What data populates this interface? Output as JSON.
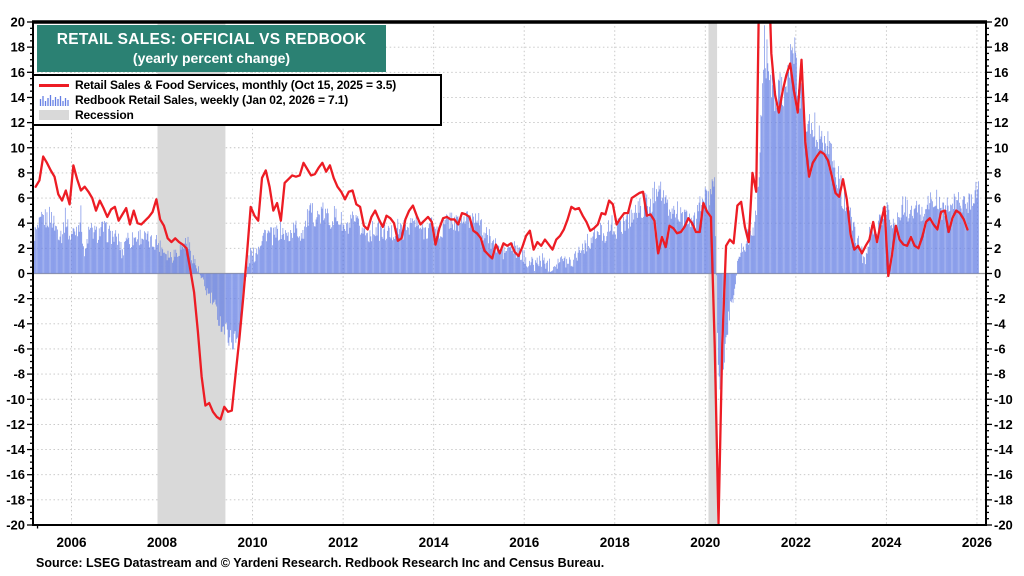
{
  "title": {
    "line1": "RETAIL SALES: OFFICIAL VS REDBOOK",
    "line2": "(yearly percent change)"
  },
  "legend": [
    {
      "type": "line",
      "color": "#ED1C24",
      "label": "Retail Sales & Food Services, monthly (Oct 15, 2025 = 3.5)"
    },
    {
      "type": "bars",
      "color": "#657FE4",
      "label": "Redbook Retail Sales, weekly (Jan 02, 2026 = 7.1)"
    },
    {
      "type": "area",
      "color": "#D9D9D9",
      "label": "Recession"
    }
  ],
  "source": "Source: LSEG Datastream and © Yardeni Research. Redbook Research Inc and Census Bureau.",
  "colors": {
    "header_bg": "#2B8173",
    "header_text": "#FFFFFF",
    "line": "#ED1C24",
    "bars": "#657FE4",
    "recession": "#D9D9D9",
    "axis": "#000000",
    "zero_line": "#9B9B9B"
  },
  "chart_data": {
    "type": "mixed",
    "title": "RETAIL SALES: OFFICIAL VS REDBOOK (yearly percent change)",
    "ylabel": "yearly percent change",
    "x_axis": {
      "domain": [
        2005.15,
        2026.2
      ],
      "tick_years": [
        2006,
        2008,
        2010,
        2012,
        2014,
        2016,
        2018,
        2020,
        2022,
        2024,
        2026
      ],
      "minor_tick_step_years": 0.25
    },
    "y_axis": {
      "domain": [
        -20,
        20
      ],
      "tick_step": 2,
      "minor_tick_step": 0.5,
      "sides": "both",
      "grid": "dotted"
    },
    "recessions": [
      {
        "start": 2007.9,
        "end": 2009.4
      },
      {
        "start": 2020.07,
        "end": 2020.26
      }
    ],
    "series": [
      {
        "name": "Retail Sales & Food Services",
        "type": "line",
        "color": "#ED1C24",
        "cadence": "monthly",
        "start_year": 2005,
        "start_month": 3,
        "latest": {
          "date": "Oct 15, 2025",
          "value": 3.5
        },
        "values": [
          6.9,
          7.4,
          9.3,
          8.8,
          8.2,
          7.7,
          6.3,
          5.8,
          6.6,
          5.5,
          8.6,
          7.5,
          6.6,
          6.9,
          6.5,
          6.0,
          5.0,
          5.8,
          5.2,
          4.5,
          5.1,
          5.3,
          4.2,
          4.7,
          5.2,
          3.9,
          5.0,
          4.0,
          3.9,
          4.2,
          4.5,
          4.9,
          5.9,
          4.3,
          3.8,
          2.8,
          2.5,
          2.8,
          2.5,
          2.3,
          2.0,
          0.3,
          -1.5,
          -4.6,
          -8.2,
          -10.5,
          -10.3,
          -11.0,
          -11.4,
          -11.6,
          -10.6,
          -11.0,
          -10.9,
          -8.0,
          -5.2,
          -2.0,
          1.5,
          5.3,
          4.6,
          4.2,
          7.6,
          8.2,
          6.9,
          5.0,
          5.6,
          4.2,
          7.2,
          7.5,
          7.8,
          7.7,
          7.8,
          8.8,
          8.3,
          7.8,
          7.9,
          8.4,
          8.8,
          8.1,
          8.6,
          7.6,
          6.9,
          6.5,
          5.9,
          6.5,
          6.6,
          5.5,
          5.3,
          3.8,
          3.5,
          4.5,
          5.0,
          4.3,
          3.7,
          4.6,
          4.4,
          4.0,
          2.6,
          2.8,
          4.3,
          5.0,
          5.4,
          4.6,
          3.9,
          4.2,
          4.5,
          4.1,
          2.3,
          3.6,
          4.4,
          4.5,
          4.3,
          4.3,
          3.9,
          4.8,
          4.7,
          4.5,
          3.4,
          3.2,
          2.8,
          1.8,
          1.5,
          1.2,
          2.3,
          1.6,
          2.4,
          2.2,
          2.4,
          1.7,
          1.4,
          2.1,
          3.0,
          3.4,
          1.9,
          2.5,
          2.2,
          2.7,
          2.3,
          1.9,
          2.7,
          3.0,
          3.5,
          4.3,
          5.3,
          5.1,
          5.2,
          4.6,
          4.1,
          3.4,
          3.6,
          3.9,
          4.8,
          4.7,
          5.8,
          5.5,
          3.9,
          4.4,
          4.8,
          4.8,
          6.0,
          6.2,
          6.4,
          6.5,
          4.6,
          4.7,
          4.2,
          1.6,
          2.9,
          2.1,
          3.8,
          3.6,
          3.2,
          3.3,
          3.7,
          4.4,
          4.0,
          3.3,
          3.3,
          5.6,
          4.9,
          4.5,
          -5.8,
          -19.9,
          -5.6,
          2.2,
          2.7,
          2.4,
          5.4,
          5.7,
          3.7,
          2.5,
          8.0,
          6.5,
          28.0,
          51.0,
          27.0,
          17.5,
          14.2,
          12.8,
          14.5,
          15.8,
          16.7,
          14.5,
          12.8,
          17.0,
          10.5,
          7.7,
          8.8,
          9.3,
          9.7,
          9.5,
          9.0,
          7.8,
          6.4,
          6.1,
          7.5,
          5.9,
          3.1,
          1.9,
          2.2,
          1.6,
          2.2,
          2.7,
          4.1,
          2.5,
          4.0,
          5.3,
          -0.2,
          1.5,
          3.8,
          2.7,
          2.3,
          2.2,
          2.9,
          2.2,
          2.0,
          2.9,
          4.1,
          4.4,
          3.9,
          3.5,
          4.9,
          5.0,
          3.3,
          4.4,
          5.0,
          4.8,
          4.3,
          3.5
        ]
      },
      {
        "name": "Redbook Retail Sales",
        "type": "bar",
        "color": "#657FE4",
        "cadence": "monthly anchors of the weekly series shown on chart",
        "start_year": 2005,
        "start_month": 3,
        "latest": {
          "date": "Jan 02, 2026",
          "value": 7.1
        },
        "weekly_render": {
          "bars_per_year": 52,
          "jitter_base": 0.5,
          "jitter_scale": 0.085
        },
        "values": [
          3.2,
          3.7,
          4.4,
          4.3,
          4.6,
          3.9,
          3.4,
          3.1,
          4.6,
          2.9,
          3.3,
          3.6,
          4.6,
          1.2,
          3.2,
          3.4,
          3.1,
          3.3,
          3.6,
          3.2,
          3.1,
          2.8,
          2.7,
          1.5,
          3.1,
          2.6,
          2.8,
          2.9,
          3.0,
          2.8,
          2.6,
          2.4,
          2.7,
          2.1,
          1.9,
          1.6,
          1.4,
          1.7,
          1.9,
          2.2,
          2.6,
          1.9,
          1.0,
          0.3,
          -0.6,
          -1.2,
          -1.8,
          -2.3,
          -3.1,
          -3.9,
          -4.4,
          -4.8,
          -5.4,
          -5.2,
          -5.0,
          -2.5,
          0.5,
          1.6,
          1.4,
          2.2,
          2.9,
          3.3,
          3.1,
          2.9,
          3.2,
          3.4,
          3.1,
          2.9,
          3.4,
          3.6,
          3.1,
          3.4,
          4.3,
          4.8,
          4.6,
          4.5,
          4.8,
          4.6,
          4.3,
          4.6,
          4.4,
          4.1,
          3.4,
          3.6,
          4.1,
          3.9,
          3.6,
          3.4,
          3.1,
          3.3,
          3.6,
          3.4,
          3.1,
          3.3,
          3.1,
          3.3,
          3.6,
          3.4,
          3.6,
          3.9,
          4.1,
          3.9,
          3.6,
          3.4,
          3.6,
          3.9,
          3.4,
          3.1,
          3.6,
          4.1,
          4.4,
          4.1,
          3.9,
          4.1,
          4.4,
          4.1,
          4.6,
          4.9,
          3.6,
          3.1,
          2.9,
          2.6,
          2.1,
          1.9,
          1.6,
          1.9,
          2.1,
          1.9,
          1.6,
          1.4,
          1.1,
          0.9,
          0.7,
          0.9,
          1.1,
          0.9,
          0.7,
          0.6,
          0.9,
          1.1,
          0.9,
          1.1,
          0.9,
          1.4,
          1.9,
          2.1,
          2.4,
          2.6,
          2.9,
          3.1,
          3.4,
          3.1,
          3.6,
          3.9,
          3.4,
          3.9,
          4.1,
          4.4,
          4.6,
          4.9,
          5.1,
          5.4,
          5.6,
          5.1,
          6.4,
          7.4,
          6.4,
          5.4,
          4.8,
          4.9,
          5.1,
          4.6,
          4.4,
          4.1,
          4.4,
          4.1,
          5.4,
          6.4,
          5.6,
          6.2,
          7.0,
          -9.0,
          -8.0,
          -5.5,
          -3.0,
          -1.8,
          0.8,
          1.8,
          2.4,
          2.9,
          3.4,
          4.4,
          9.5,
          18.0,
          17.0,
          15.5,
          14.5,
          15.5,
          14.5,
          15.0,
          16.5,
          17.5,
          15.5,
          14.5,
          12.5,
          11.5,
          12.0,
          11.0,
          11.5,
          11.0,
          10.5,
          9.5,
          8.0,
          7.5,
          5.9,
          5.4,
          4.4,
          3.4,
          2.4,
          1.6,
          0.9,
          2.9,
          3.9,
          3.4,
          4.4,
          5.1,
          4.9,
          4.4,
          3.4,
          4.9,
          5.4,
          5.1,
          4.6,
          4.9,
          5.1,
          4.6,
          5.4,
          5.9,
          5.4,
          5.9,
          4.9,
          5.4,
          5.1,
          5.4,
          5.6,
          5.9,
          5.4,
          5.6,
          6.1,
          6.6,
          7.1
        ]
      }
    ]
  }
}
